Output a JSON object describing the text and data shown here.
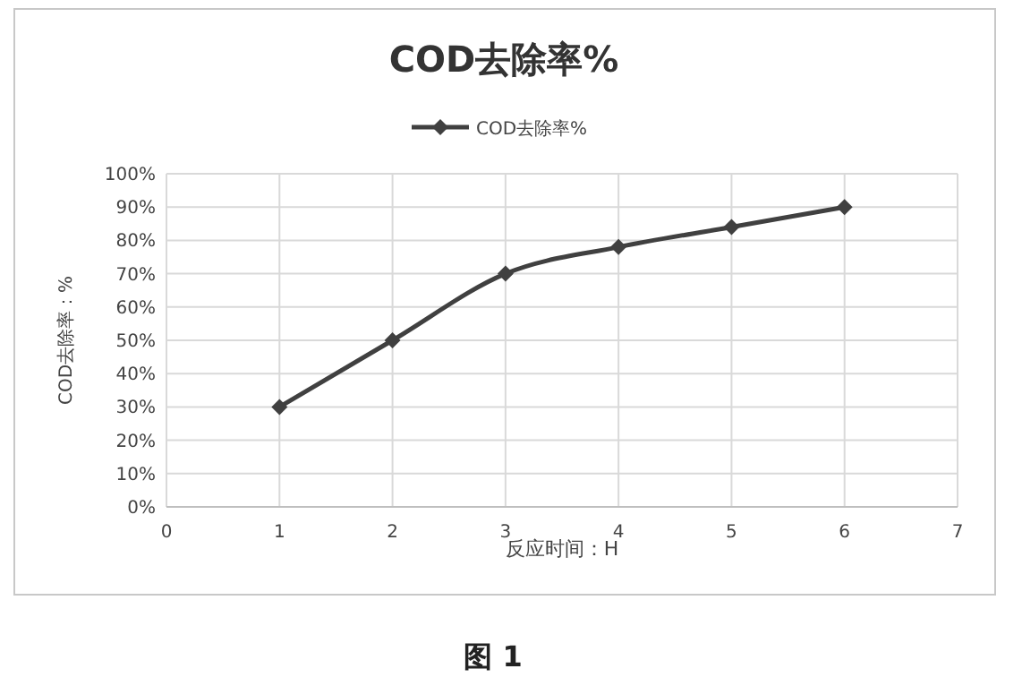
{
  "chart_data": {
    "type": "line",
    "title": "COD去除率%",
    "xlabel": "反应时间：H",
    "ylabel": "COD去除率：%",
    "annotations": [
      "图 1"
    ],
    "x": [
      1,
      2,
      3,
      4,
      5,
      6
    ],
    "series": [
      {
        "name": "COD去除率%",
        "color": "#404040",
        "values": [
          30,
          50,
          70,
          78,
          84,
          90
        ]
      }
    ],
    "xlim": [
      0,
      7
    ],
    "xticks": [
      0,
      1,
      2,
      3,
      4,
      5,
      6,
      7
    ],
    "ylim": [
      0,
      100
    ],
    "yticks": [
      {
        "value": 0,
        "label": "0%"
      },
      {
        "value": 10,
        "label": "10%"
      },
      {
        "value": 20,
        "label": "20%"
      },
      {
        "value": 30,
        "label": "30%"
      },
      {
        "value": 40,
        "label": "40%"
      },
      {
        "value": 50,
        "label": "50%"
      },
      {
        "value": 60,
        "label": "60%"
      },
      {
        "value": 70,
        "label": "70%"
      },
      {
        "value": 80,
        "label": "80%"
      },
      {
        "value": 90,
        "label": "90%"
      },
      {
        "value": 100,
        "label": "100%"
      }
    ],
    "grid": true,
    "legend": "top",
    "marker": "diamond",
    "line_style": "solid"
  }
}
